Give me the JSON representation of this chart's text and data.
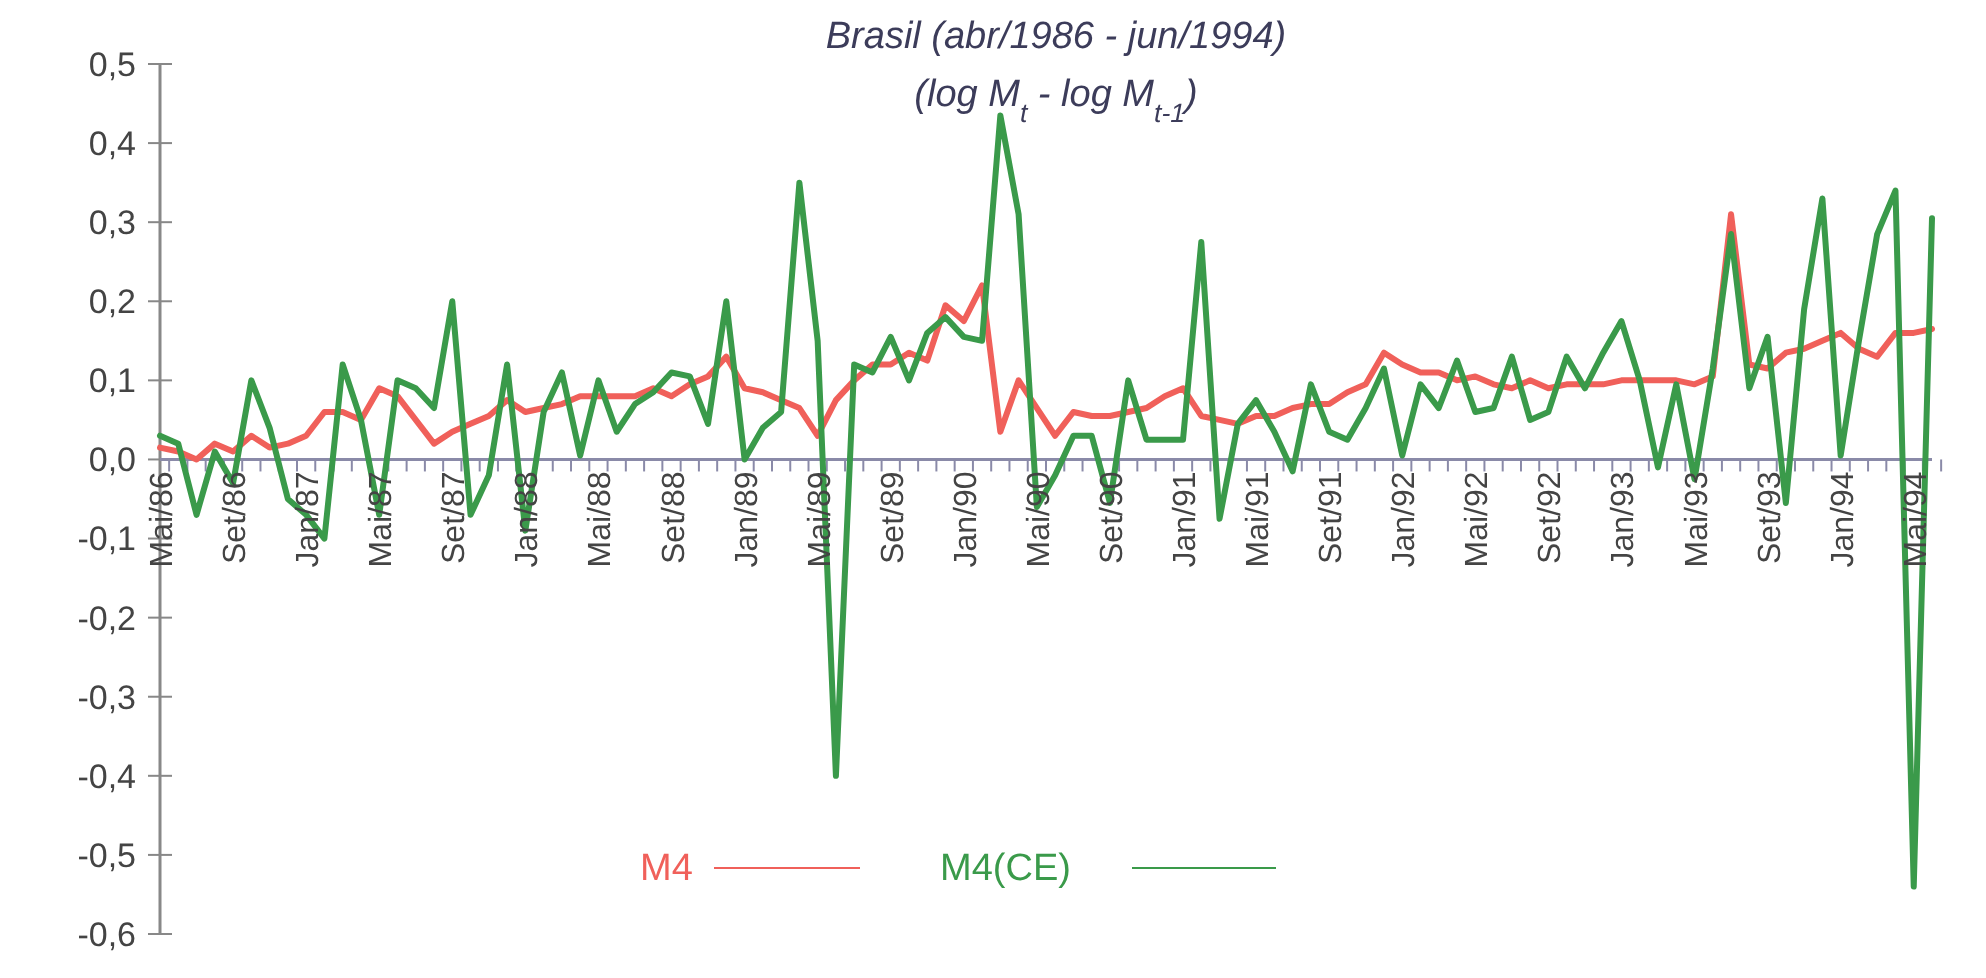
{
  "chart_data": {
    "type": "line",
    "title": "Brasil (abr/1986 - jun/1994)",
    "subtitle": "(log M$_{t}$ - log M$_{t-1}$)",
    "categories": [
      "Mai/86",
      null,
      null,
      null,
      "Set/86",
      null,
      null,
      null,
      "Jan/87",
      null,
      null,
      null,
      "Mai/87",
      null,
      null,
      null,
      "Set/87",
      null,
      null,
      null,
      "Jan/88",
      null,
      null,
      null,
      "Mai/88",
      null,
      null,
      null,
      "Set/88",
      null,
      null,
      null,
      "Jan/89",
      null,
      null,
      null,
      "Mai/89",
      null,
      null,
      null,
      "Set/89",
      null,
      null,
      null,
      "Jan/90",
      null,
      null,
      null,
      "Mai/90",
      null,
      null,
      null,
      "Set/90",
      null,
      null,
      null,
      "Jan/91",
      null,
      null,
      null,
      "Mai/91",
      null,
      null,
      null,
      "Set/91",
      null,
      null,
      null,
      "Jan/92",
      null,
      null,
      null,
      "Mai/92",
      null,
      null,
      null,
      "Set/92",
      null,
      null,
      null,
      "Jan/93",
      null,
      null,
      null,
      "Mai/93",
      null,
      null,
      null,
      "Set/93",
      null,
      null,
      null,
      "Jan/94",
      null,
      null,
      null,
      "Mai/94",
      null
    ],
    "series": [
      {
        "name": "M4",
        "color": "#f0605a",
        "values": [
          0.015,
          0.01,
          0.0,
          0.02,
          0.01,
          0.03,
          0.015,
          0.02,
          0.03,
          0.06,
          0.06,
          0.05,
          0.09,
          0.08,
          0.05,
          0.02,
          0.035,
          0.045,
          0.055,
          0.075,
          0.06,
          0.065,
          0.07,
          0.08,
          0.08,
          0.08,
          0.08,
          0.09,
          0.08,
          0.095,
          0.105,
          0.13,
          0.09,
          0.085,
          0.075,
          0.065,
          0.03,
          0.075,
          0.1,
          0.12,
          0.12,
          0.135,
          0.125,
          0.195,
          0.175,
          0.22,
          0.035,
          0.1,
          0.065,
          0.03,
          0.06,
          0.055,
          0.055,
          0.06,
          0.065,
          0.08,
          0.09,
          0.055,
          0.05,
          0.045,
          0.055,
          0.055,
          0.065,
          0.07,
          0.07,
          0.085,
          0.095,
          0.135,
          0.12,
          0.11,
          0.11,
          0.1,
          0.105,
          0.095,
          0.09,
          0.1,
          0.09,
          0.095,
          0.095,
          0.095,
          0.1,
          0.1,
          0.1,
          0.1,
          0.095,
          0.105,
          0.31,
          0.12,
          0.115,
          0.135,
          0.14,
          0.15,
          0.16,
          0.14,
          0.13,
          0.16,
          0.16,
          0.165
        ]
      },
      {
        "name": "M4(CE)",
        "color": "#3a9a4a",
        "values": [
          0.03,
          0.02,
          -0.07,
          0.01,
          -0.03,
          0.1,
          0.04,
          -0.05,
          -0.07,
          -0.1,
          0.12,
          0.05,
          -0.07,
          0.1,
          0.09,
          0.065,
          0.2,
          -0.07,
          -0.02,
          0.12,
          -0.09,
          0.06,
          0.11,
          0.005,
          0.1,
          0.035,
          0.07,
          0.085,
          0.11,
          0.105,
          0.045,
          0.2,
          0.0,
          0.04,
          0.06,
          0.35,
          0.15,
          -0.4,
          0.12,
          0.11,
          0.155,
          0.1,
          0.16,
          0.18,
          0.155,
          0.15,
          0.435,
          0.31,
          -0.06,
          -0.02,
          0.03,
          0.03,
          -0.055,
          0.1,
          0.025,
          0.025,
          0.025,
          0.275,
          -0.075,
          0.045,
          0.075,
          0.035,
          -0.015,
          0.095,
          0.035,
          0.025,
          0.065,
          0.115,
          0.005,
          0.095,
          0.065,
          0.125,
          0.06,
          0.065,
          0.13,
          0.05,
          0.06,
          0.13,
          0.09,
          0.135,
          0.175,
          0.1,
          -0.01,
          0.095,
          -0.025,
          0.115,
          0.285,
          0.09,
          0.155,
          -0.055,
          0.19,
          0.33,
          0.005,
          0.15,
          0.285,
          0.34,
          -0.54,
          0.305
        ]
      }
    ],
    "ylim": [
      -0.6,
      0.5
    ],
    "yticks": [
      {
        "value": -0.6,
        "label": "-0,6"
      },
      {
        "value": -0.5,
        "label": "-0,5"
      },
      {
        "value": -0.4,
        "label": "-0,4"
      },
      {
        "value": -0.3,
        "label": "-0,3"
      },
      {
        "value": -0.2,
        "label": "-0,2"
      },
      {
        "value": -0.1,
        "label": "-0,1"
      },
      {
        "value": 0,
        "label": "0,0"
      },
      {
        "value": 0.1,
        "label": "0,1"
      },
      {
        "value": 0.2,
        "label": "0,2"
      },
      {
        "value": 0.3,
        "label": "0,3"
      },
      {
        "value": 0.4,
        "label": "0,4"
      },
      {
        "value": 0.5,
        "label": "0,5"
      }
    ],
    "grid": false,
    "legend": "bottom",
    "marker": "none",
    "line_style": "solid"
  }
}
